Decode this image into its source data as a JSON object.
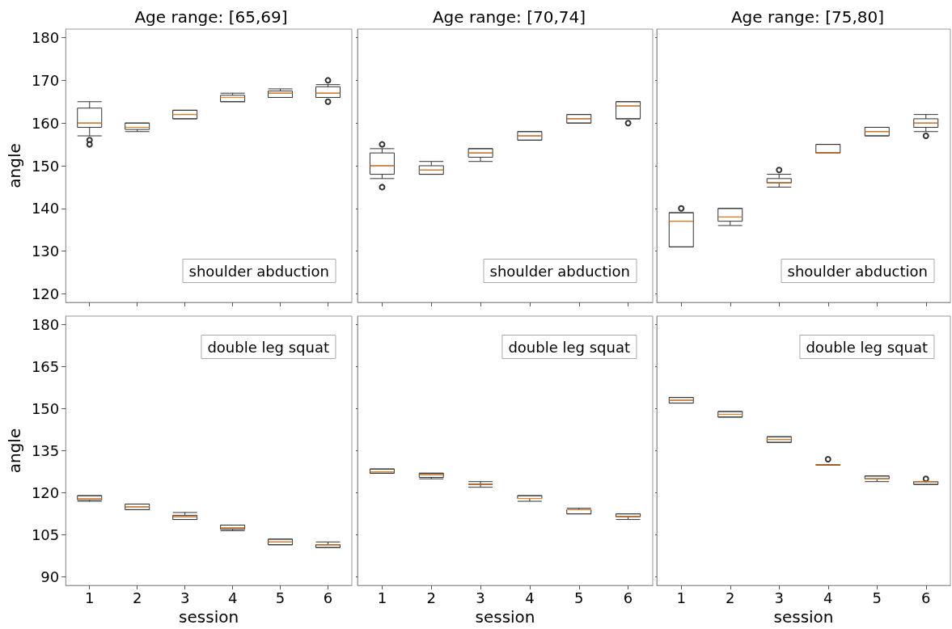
{
  "chart_data": [
    {
      "type": "box",
      "title": "Age range: [65,69]",
      "ylabel": "angle",
      "annotations": [
        "shoulder abduction"
      ],
      "categories": [
        "1",
        "2",
        "3",
        "4",
        "5",
        "6"
      ],
      "ylim": [
        118,
        182
      ],
      "yticks": [
        120,
        130,
        140,
        150,
        160,
        170,
        180
      ],
      "tick_labels": "y",
      "boxes": [
        {
          "low": 157,
          "q1": 159,
          "median": 160,
          "q3": 163.5,
          "high": 165,
          "outliers": [
            156,
            155
          ]
        },
        {
          "low": 158,
          "q1": 158.5,
          "median": 159,
          "q3": 160,
          "high": 160
        },
        {
          "low": 161,
          "q1": 161,
          "median": 162,
          "q3": 163,
          "high": 163
        },
        {
          "low": 165,
          "q1": 165,
          "median": 166,
          "q3": 166.5,
          "high": 167
        },
        {
          "low": 166,
          "q1": 166,
          "median": 167,
          "q3": 167.5,
          "high": 168
        },
        {
          "low": 166,
          "q1": 166,
          "median": 167,
          "q3": 168.5,
          "high": 169,
          "outliers": [
            170,
            165
          ]
        }
      ]
    },
    {
      "type": "box",
      "title": "Age range: [70,74]",
      "annotations": [
        "shoulder abduction"
      ],
      "categories": [
        "1",
        "2",
        "3",
        "4",
        "5",
        "6"
      ],
      "ylim": [
        118,
        182
      ],
      "yticks": [
        120,
        130,
        140,
        150,
        160,
        170,
        180
      ],
      "tick_labels": false,
      "boxes": [
        {
          "low": 147,
          "q1": 148,
          "median": 150,
          "q3": 153,
          "high": 154,
          "outliers": [
            155,
            145
          ]
        },
        {
          "low": 148,
          "q1": 148,
          "median": 149,
          "q3": 150,
          "high": 151
        },
        {
          "low": 151,
          "q1": 152,
          "median": 153,
          "q3": 154,
          "high": 154
        },
        {
          "low": 156,
          "q1": 156,
          "median": 157,
          "q3": 158,
          "high": 158
        },
        {
          "low": 160,
          "q1": 160,
          "median": 161,
          "q3": 162,
          "high": 162
        },
        {
          "low": 161,
          "q1": 161,
          "median": 164,
          "q3": 165,
          "high": 165,
          "outliers": [
            160
          ]
        }
      ]
    },
    {
      "type": "box",
      "title": "Age range: [75,80]",
      "annotations": [
        "shoulder abduction"
      ],
      "categories": [
        "1",
        "2",
        "3",
        "4",
        "5",
        "6"
      ],
      "ylim": [
        118,
        182
      ],
      "yticks": [
        120,
        130,
        140,
        150,
        160,
        170,
        180
      ],
      "tick_labels": false,
      "boxes": [
        {
          "low": 131,
          "q1": 131,
          "median": 137,
          "q3": 139,
          "high": 139,
          "outliers": [
            140
          ]
        },
        {
          "low": 136,
          "q1": 137,
          "median": 138,
          "q3": 140,
          "high": 140
        },
        {
          "low": 145,
          "q1": 146,
          "median": 146,
          "q3": 147,
          "high": 148,
          "outliers": [
            149
          ]
        },
        {
          "low": 153,
          "q1": 153,
          "median": 153,
          "q3": 155,
          "high": 155
        },
        {
          "low": 157,
          "q1": 157,
          "median": 158,
          "q3": 159,
          "high": 159
        },
        {
          "low": 158,
          "q1": 159,
          "median": 160,
          "q3": 161,
          "high": 162,
          "outliers": [
            157
          ]
        }
      ]
    },
    {
      "type": "box",
      "xlabel": "session",
      "ylabel": "angle",
      "annotations": [
        "double leg squat"
      ],
      "categories": [
        "1",
        "2",
        "3",
        "4",
        "5",
        "6"
      ],
      "ylim": [
        87,
        183
      ],
      "yticks": [
        90,
        105,
        120,
        135,
        150,
        165,
        180
      ],
      "boxes": [
        {
          "low": 117,
          "q1": 117.5,
          "median": 118,
          "q3": 119,
          "high": 119
        },
        {
          "low": 114,
          "q1": 114,
          "median": 115,
          "q3": 116,
          "high": 116
        },
        {
          "low": 110.5,
          "q1": 110.5,
          "median": 111.5,
          "q3": 112,
          "high": 113
        },
        {
          "low": 106.5,
          "q1": 107,
          "median": 107.5,
          "q3": 108.5,
          "high": 108.5
        },
        {
          "low": 101.5,
          "q1": 101.5,
          "median": 102.5,
          "q3": 103.5,
          "high": 103.5
        },
        {
          "low": 100.5,
          "q1": 100.5,
          "median": 101.5,
          "q3": 101.5,
          "high": 102.5
        }
      ]
    },
    {
      "type": "box",
      "xlabel": "session",
      "annotations": [
        "double leg squat"
      ],
      "categories": [
        "1",
        "2",
        "3",
        "4",
        "5",
        "6"
      ],
      "ylim": [
        87,
        183
      ],
      "yticks": [
        90,
        105,
        120,
        135,
        150,
        165,
        180
      ],
      "tick_labels": "x",
      "boxes": [
        {
          "low": 127,
          "q1": 127,
          "median": 127.5,
          "q3": 128.5,
          "high": 128.5
        },
        {
          "low": 125,
          "q1": 125.5,
          "median": 126.5,
          "q3": 127,
          "high": 127
        },
        {
          "low": 122,
          "q1": 123,
          "median": 123,
          "q3": 123,
          "high": 124
        },
        {
          "low": 117,
          "q1": 118,
          "median": 118,
          "q3": 119,
          "high": 119
        },
        {
          "low": 112.5,
          "q1": 112.5,
          "median": 114,
          "q3": 114,
          "high": 114.5
        },
        {
          "low": 110.5,
          "q1": 111.5,
          "median": 111.5,
          "q3": 112.5,
          "high": 112.5
        }
      ]
    },
    {
      "type": "box",
      "xlabel": "session",
      "annotations": [
        "double leg squat"
      ],
      "categories": [
        "1",
        "2",
        "3",
        "4",
        "5",
        "6"
      ],
      "ylim": [
        87,
        183
      ],
      "yticks": [
        90,
        105,
        120,
        135,
        150,
        165,
        180
      ],
      "tick_labels": "x",
      "boxes": [
        {
          "low": 152,
          "q1": 152,
          "median": 153,
          "q3": 154,
          "high": 154
        },
        {
          "low": 147,
          "q1": 147,
          "median": 148,
          "q3": 149,
          "high": 149
        },
        {
          "low": 138,
          "q1": 138,
          "median": 139,
          "q3": 140,
          "high": 140
        },
        {
          "low": 130,
          "q1": 130,
          "median": 130,
          "q3": 130,
          "high": 130,
          "outliers": [
            132
          ]
        },
        {
          "low": 124,
          "q1": 125,
          "median": 125,
          "q3": 126,
          "high": 126
        },
        {
          "low": 123,
          "q1": 123,
          "median": 124,
          "q3": 124,
          "high": 124,
          "outliers": [
            125
          ]
        }
      ]
    }
  ]
}
